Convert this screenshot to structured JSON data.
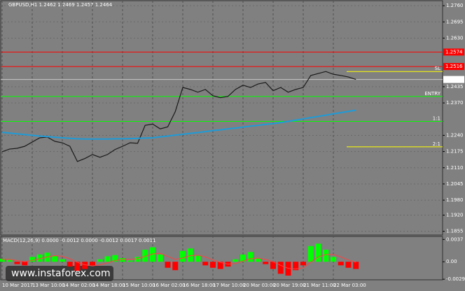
{
  "chart_data": [
    {
      "type": "line",
      "title": "GBPUSD,H1  1.2462 1.2469 1.2457 1.2464",
      "categories": [
        "10 Mar 2017",
        null,
        null,
        null,
        "13 Mar 10:00",
        null,
        null,
        null,
        "14 Mar 02:00",
        null,
        null,
        null,
        "14 Mar 18:00",
        null,
        null,
        null,
        "15 Mar 10:00",
        null,
        null,
        null,
        "16 Mar 02:00",
        null,
        null,
        null,
        "16 Mar 18:00",
        null,
        null,
        null,
        "17 Mar 10:00",
        null,
        null,
        null,
        "20 Mar 03:00",
        null,
        null,
        null,
        "20 Mar 19:00",
        null,
        null,
        null,
        "21 Mar 11:00",
        null,
        null,
        null,
        "22 Mar 03:00",
        null,
        null,
        null
      ],
      "series": [
        {
          "name": "GBPUSD,H1",
          "color": "#1a1a1a",
          "values": [
            1.2174,
            1.2185,
            1.2188,
            1.2196,
            1.2213,
            1.223,
            1.2233,
            1.2216,
            1.221,
            1.2196,
            1.2135,
            1.2147,
            1.2163,
            1.2152,
            1.2163,
            1.2183,
            1.2196,
            1.221,
            1.2208,
            1.228,
            1.2285,
            1.2266,
            1.2274,
            1.2335,
            1.2432,
            1.2424,
            1.2413,
            1.2424,
            1.2399,
            1.2391,
            1.2396,
            1.2424,
            1.2441,
            1.2432,
            1.2446,
            1.2452,
            1.2419,
            1.2432,
            1.2413,
            1.2424,
            1.2432,
            1.248,
            1.2488,
            1.2496,
            1.2485,
            1.248,
            1.2474,
            1.2464
          ]
        },
        {
          "name": "MA",
          "color": "#1e9bd7",
          "values": [
            1.2252,
            1.2249,
            1.2246,
            1.2243,
            1.224,
            1.2237,
            1.2235,
            1.2232,
            1.223,
            1.2228,
            1.2226,
            1.2225,
            1.2225,
            1.2225,
            1.2225,
            1.2226,
            1.2226,
            1.2227,
            1.2228,
            1.2229,
            1.223,
            1.2234,
            1.2237,
            1.2241,
            1.2244,
            1.2248,
            1.2251,
            1.2255,
            1.2259,
            1.2262,
            1.2266,
            1.2269,
            1.2273,
            1.2277,
            1.228,
            1.2284,
            1.2287,
            1.2291,
            1.2296,
            1.2301,
            1.2306,
            1.2311,
            1.2316,
            1.2321,
            1.2326,
            1.2331,
            1.2336,
            1.2341
          ]
        }
      ],
      "ylim": [
        1.184,
        1.278
      ],
      "yticks": [
        {
          "value": 1.276,
          "label": "1.2760"
        },
        1.2695,
        {
          "value": 1.263,
          "label": "1.2630"
        },
        1.2435,
        {
          "value": 1.237,
          "label": "1.2370"
        },
        {
          "value": 1.224,
          "label": "1.2240"
        },
        1.2175,
        {
          "value": 1.211,
          "label": "1.2110"
        },
        1.2045,
        {
          "value": 1.198,
          "label": "1.1980"
        },
        {
          "value": 1.192,
          "label": "1.1920"
        },
        1.1855
      ],
      "grid": true,
      "levels": [
        {
          "value": 1.2574,
          "color": "#ff0000",
          "box": true
        },
        {
          "value": 1.2516,
          "color": "#ff0000",
          "box": true
        },
        {
          "value": 1.2496,
          "color": "#ffff00",
          "label": "SL",
          "short": true
        },
        {
          "value": 1.2464,
          "color": "#c8c8c8",
          "box": true
        },
        {
          "value": 1.2396,
          "color": "#00ff00",
          "label": "ENTRY"
        },
        {
          "value": 1.2296,
          "color": "#00ff00",
          "label": "1:1"
        },
        {
          "value": 1.2194,
          "color": "#ffff00",
          "label": "2:1",
          "short": true
        }
      ],
      "watermark": "www.instaforex.com"
    },
    {
      "type": "bar",
      "title": "MACD(12,26,9) 0.0000 -0.0012 0.0000 -0.0012 0.0017 0.0011",
      "up_color": "#00ff00",
      "down_color": "#ff0000",
      "values": [
        0.0005,
        0.0003,
        -0.0004,
        -0.0006,
        0.0008,
        0.0012,
        0.0015,
        0.001,
        0.0004,
        -0.0008,
        -0.0015,
        -0.0012,
        -0.0006,
        0.0004,
        0.0009,
        0.0011,
        0.0006,
        0.0002,
        0.0008,
        0.002,
        0.0024,
        0.0012,
        -0.001,
        -0.0014,
        0.0018,
        0.0022,
        0.001,
        -0.0006,
        -0.001,
        -0.0012,
        -0.0008,
        0.0004,
        0.0012,
        0.0016,
        0.0006,
        -0.0004,
        -0.0012,
        -0.002,
        -0.0023,
        -0.0014,
        -0.0006,
        0.0026,
        0.003,
        0.002,
        0.0008,
        -0.0006,
        -0.001,
        -0.0012
      ],
      "signal": {
        "color": "#ff4040",
        "values": [
          0.0004,
          0.0004,
          0.0002,
          0.0,
          0.0002,
          0.0005,
          0.0008,
          0.001,
          0.0009,
          0.0005,
          -0.0001,
          -0.0005,
          -0.0007,
          -0.0005,
          -0.0002,
          0.0002,
          0.0004,
          0.0004,
          0.0005,
          0.0009,
          0.0013,
          0.0014,
          0.0009,
          0.0004,
          0.0006,
          0.001,
          0.0011,
          0.0008,
          0.0003,
          -0.0001,
          -0.0004,
          -0.0003,
          0.0001,
          0.0005,
          0.0006,
          0.0004,
          0.0,
          -0.0006,
          -0.0011,
          -0.0012,
          -0.001,
          -0.0001,
          0.0008,
          0.0012,
          0.0012,
          0.0008,
          0.0003,
          -0.0001
        ]
      },
      "ylim": [
        -0.003,
        0.0042
      ],
      "yticks": [
        0.0037,
        {
          "value": 0,
          "label": "0.00"
        },
        -0.0029
      ]
    }
  ]
}
